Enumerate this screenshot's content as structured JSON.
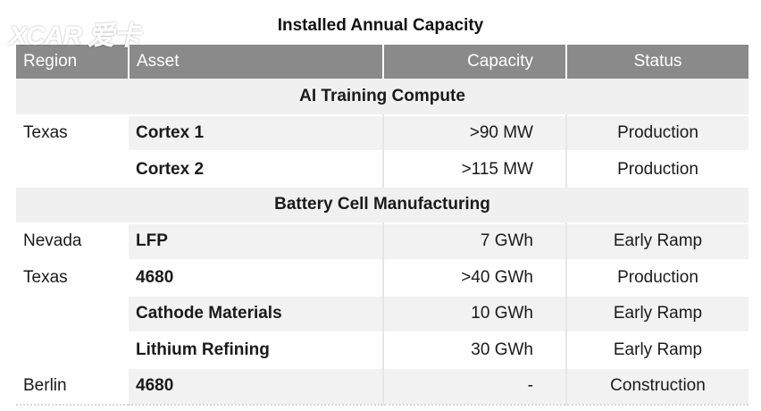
{
  "watermark": "XCAR 爱卡",
  "title": "Installed Annual Capacity",
  "columns": {
    "region": "Region",
    "asset": "Asset",
    "capacity": "Capacity",
    "status": "Status"
  },
  "sections": [
    {
      "heading": "AI Training Compute",
      "rows": [
        {
          "region": "Texas",
          "asset": "Cortex 1",
          "capacity": ">90 MW",
          "status": "Production"
        },
        {
          "region": "",
          "asset": "Cortex 2",
          "capacity": ">115 MW",
          "status": "Production"
        }
      ]
    },
    {
      "heading": "Battery Cell Manufacturing",
      "rows": [
        {
          "region": "Nevada",
          "asset": "LFP",
          "capacity": "7 GWh",
          "status": "Early Ramp"
        },
        {
          "region": "Texas",
          "asset": "4680",
          "capacity": ">40 GWh",
          "status": "Production"
        },
        {
          "region": "",
          "asset": "Cathode Materials",
          "capacity": "10 GWh",
          "status": "Early Ramp"
        },
        {
          "region": "",
          "asset": "Lithium Refining",
          "capacity": "30 GWh",
          "status": "Early Ramp"
        },
        {
          "region": "Berlin",
          "asset": "4680",
          "capacity": "-",
          "status": "Construction"
        }
      ]
    }
  ]
}
